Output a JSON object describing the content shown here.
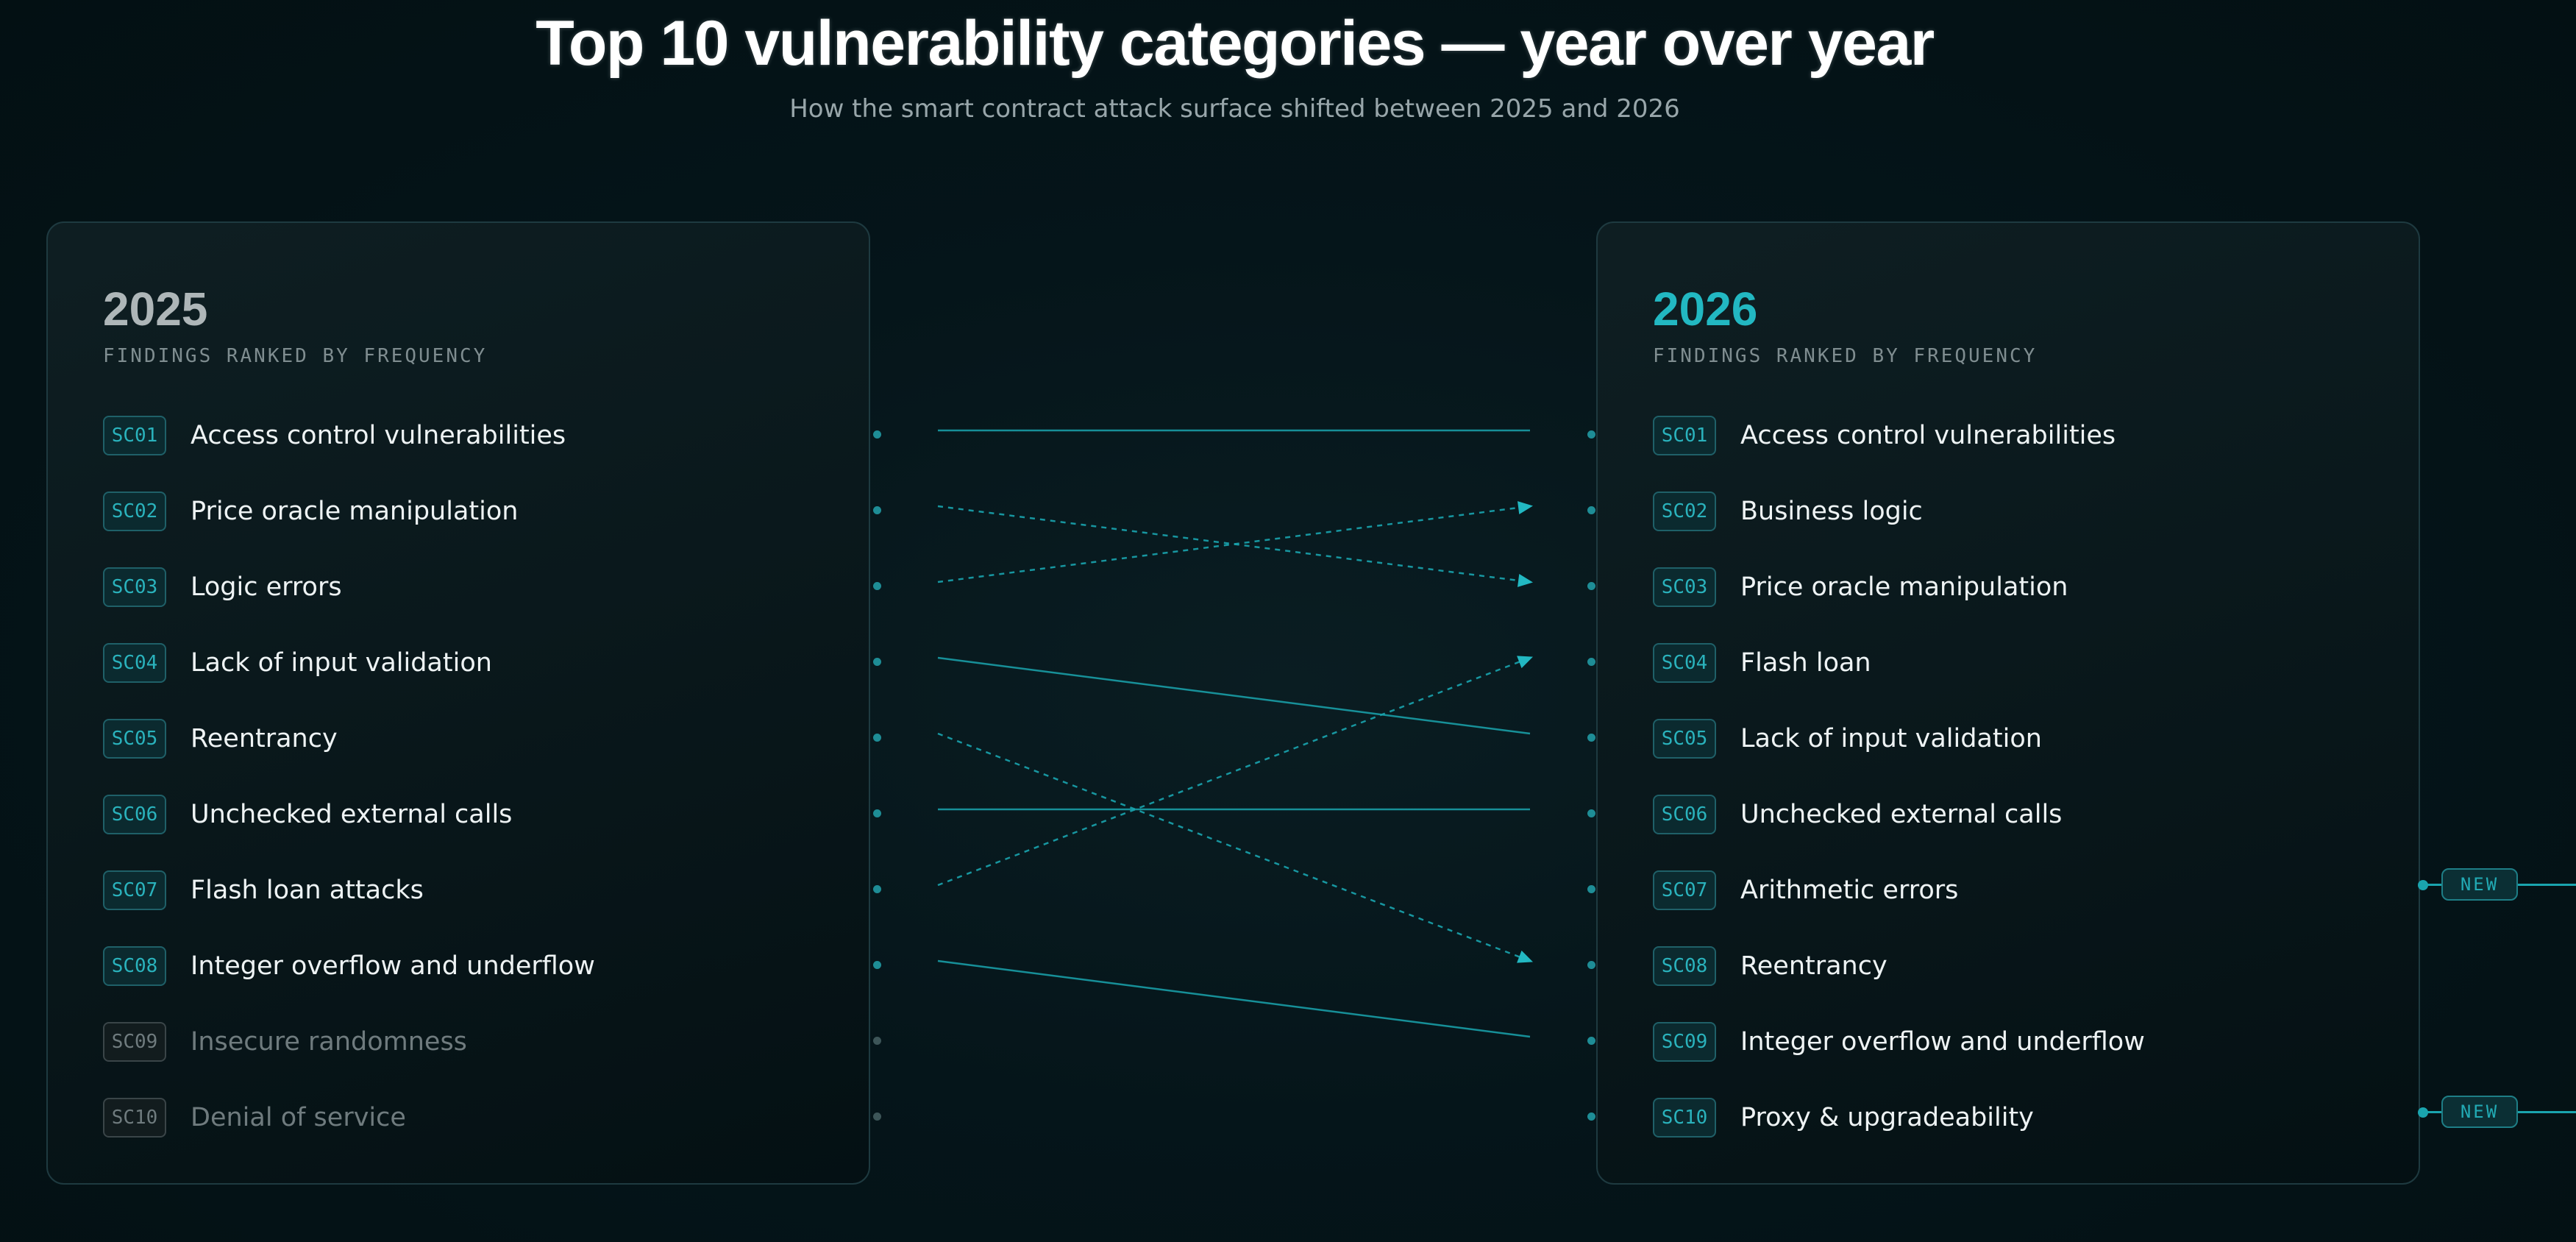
{
  "title": "Top 10 vulnerability categories — year over year",
  "subtitle": "How the smart contract attack surface shifted between 2025 and 2026",
  "left": {
    "year": "2025",
    "caption": "FINDINGS RANKED BY FREQUENCY",
    "items": [
      {
        "code": "SC01",
        "label": "Access control vulnerabilities",
        "dim": false
      },
      {
        "code": "SC02",
        "label": "Price oracle manipulation",
        "dim": false
      },
      {
        "code": "SC03",
        "label": "Logic errors",
        "dim": false
      },
      {
        "code": "SC04",
        "label": "Lack of input validation",
        "dim": false
      },
      {
        "code": "SC05",
        "label": "Reentrancy",
        "dim": false
      },
      {
        "code": "SC06",
        "label": "Unchecked external calls",
        "dim": false
      },
      {
        "code": "SC07",
        "label": "Flash loan attacks",
        "dim": false
      },
      {
        "code": "SC08",
        "label": "Integer overflow and underflow",
        "dim": false
      },
      {
        "code": "SC09",
        "label": "Insecure randomness",
        "dim": true
      },
      {
        "code": "SC10",
        "label": "Denial of service",
        "dim": true
      }
    ]
  },
  "right": {
    "year": "2026",
    "caption": "FINDINGS RANKED BY FREQUENCY",
    "items": [
      {
        "code": "SC01",
        "label": "Access control vulnerabilities",
        "new": false
      },
      {
        "code": "SC02",
        "label": "Business logic",
        "new": false
      },
      {
        "code": "SC03",
        "label": "Price oracle manipulation",
        "new": false
      },
      {
        "code": "SC04",
        "label": "Flash loan",
        "new": false
      },
      {
        "code": "SC05",
        "label": "Lack of input validation",
        "new": false
      },
      {
        "code": "SC06",
        "label": "Unchecked external calls",
        "new": false
      },
      {
        "code": "SC07",
        "label": "Arithmetic errors",
        "new": true
      },
      {
        "code": "SC08",
        "label": "Reentrancy",
        "new": false
      },
      {
        "code": "SC09",
        "label": "Integer overflow and underflow",
        "new": false
      },
      {
        "code": "SC10",
        "label": "Proxy & upgradeability",
        "new": true
      }
    ]
  },
  "new_badge_label": "NEW",
  "connections": [
    {
      "from": 1,
      "to": 1,
      "style": "solid"
    },
    {
      "from": 2,
      "to": 3,
      "style": "dashed"
    },
    {
      "from": 3,
      "to": 2,
      "style": "dashed"
    },
    {
      "from": 4,
      "to": 5,
      "style": "solid"
    },
    {
      "from": 5,
      "to": 8,
      "style": "dashed"
    },
    {
      "from": 6,
      "to": 6,
      "style": "solid"
    },
    {
      "from": 7,
      "to": 4,
      "style": "dashed"
    },
    {
      "from": 8,
      "to": 9,
      "style": "solid"
    },
    {
      "from": 9,
      "to": null,
      "style": "fade"
    },
    {
      "from": 10,
      "to": null,
      "style": "fade"
    }
  ],
  "colors": {
    "accent": "#22b8c2",
    "line": "#1aa4ae",
    "dim": "#6f7b7e"
  }
}
